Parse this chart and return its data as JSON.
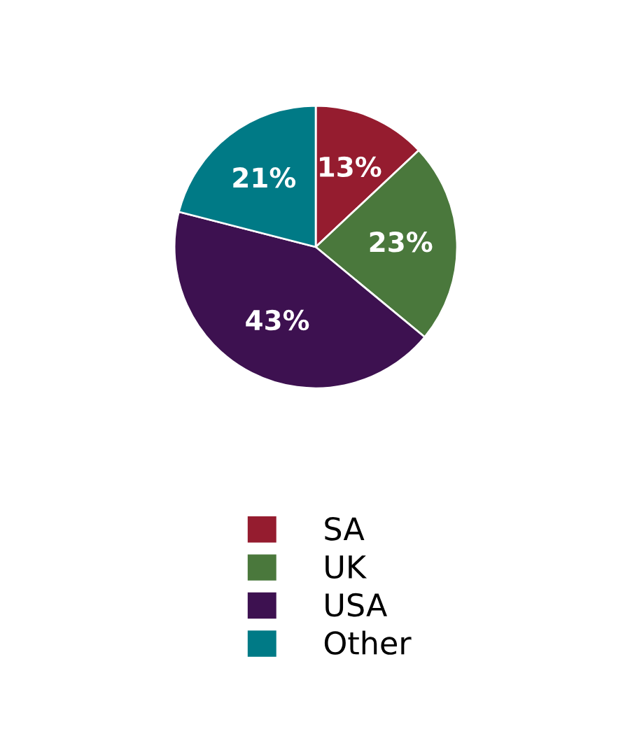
{
  "chart_data": {
    "type": "pie",
    "categories": [
      "SA",
      "UK",
      "USA",
      "Other"
    ],
    "values": [
      13,
      23,
      43,
      21
    ],
    "colors": [
      "#951c2f",
      "#4a783c",
      "#3d1150",
      "#007a86"
    ],
    "value_labels": [
      "13%",
      "23%",
      "43%",
      "21%"
    ],
    "legend": "bottom"
  }
}
